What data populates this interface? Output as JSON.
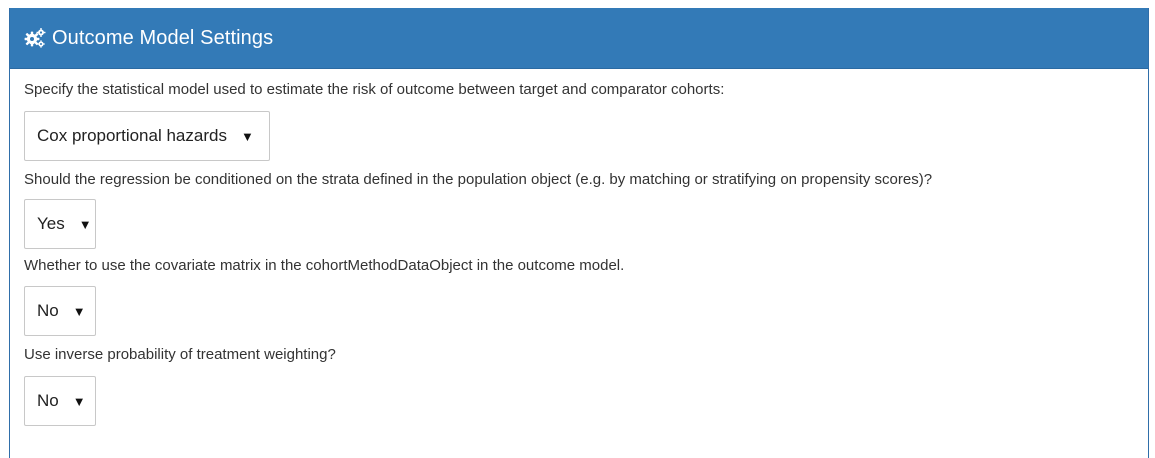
{
  "panel": {
    "title": "Outcome Model Settings",
    "icon": "gears-icon"
  },
  "fields": [
    {
      "question": "Specify the statistical model used to estimate the risk of outcome between target and comparator cohorts:",
      "selected": "Cox proportional hazards"
    },
    {
      "question": "Should the regression be conditioned on the strata defined in the population object (e.g. by matching or stratifying on propensity scores)?",
      "selected": "Yes"
    },
    {
      "question": "Whether to use the covariate matrix in the cohortMethodDataObject in the outcome model.",
      "selected": "No"
    },
    {
      "question": "Use inverse probability of treatment weighting?",
      "selected": "No"
    }
  ],
  "colors": {
    "header_bg": "#337ab7",
    "header_text": "#ffffff",
    "body_text": "#333333"
  }
}
